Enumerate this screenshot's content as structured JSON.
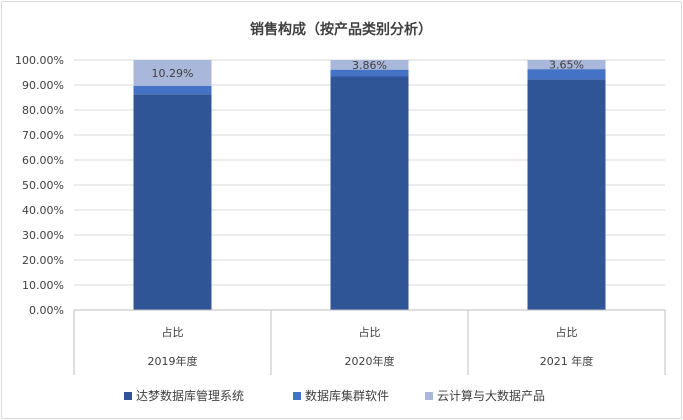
{
  "chart_data": {
    "type": "bar",
    "stacked": true,
    "title": "销售构成（按产品类别分析）",
    "categories": [
      "占比",
      "占比",
      "占比"
    ],
    "groups": [
      "2019年度",
      "2020年度",
      "2021 年度"
    ],
    "series": [
      {
        "name": "达梦数据库管理系统",
        "color": "#2f5597",
        "values": [
          86.3,
          93.4,
          92.3
        ]
      },
      {
        "name": "数据库集群软件",
        "color": "#4472c4",
        "values": [
          3.41,
          2.74,
          4.05
        ]
      },
      {
        "name": "云计算与大数据产品",
        "color": "#a9b7da",
        "values": [
          10.29,
          3.86,
          3.65
        ]
      }
    ],
    "data_labels": [
      "10.29%",
      "3.86%",
      "3.65%"
    ],
    "y_ticks": [
      "0.00%",
      "10.00%",
      "20.00%",
      "30.00%",
      "40.00%",
      "50.00%",
      "60.00%",
      "70.00%",
      "80.00%",
      "90.00%",
      "100.00%"
    ],
    "ylim": [
      0,
      100
    ],
    "grid": true,
    "legend_position": "bottom"
  }
}
